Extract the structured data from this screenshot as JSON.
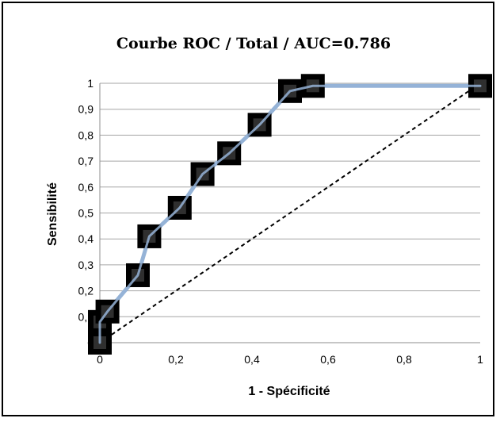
{
  "chart_data": {
    "type": "line",
    "title": "Courbe ROC / Total / AUC=0.786",
    "xlabel": "1 - Spécificité",
    "ylabel": "Sensibilité",
    "xlim": [
      0,
      1
    ],
    "ylim": [
      0,
      1
    ],
    "x_ticks": [
      "0",
      "0,2",
      "0,4",
      "0,6",
      "0,8",
      "1"
    ],
    "x_tick_values": [
      0,
      0.2,
      0.4,
      0.6,
      0.8,
      1
    ],
    "y_ticks": [
      "0",
      "0,1",
      "0,2",
      "0,3",
      "0,4",
      "0,5",
      "0,6",
      "0,7",
      "0,8",
      "0,9",
      "1"
    ],
    "y_tick_values": [
      0,
      0.1,
      0.2,
      0.3,
      0.4,
      0.5,
      0.6,
      0.7,
      0.8,
      0.9,
      1
    ],
    "grid": "horizontal",
    "legend": "none",
    "series": [
      {
        "points": [
          {
            "x": 0,
            "y": 0
          },
          {
            "x": 0,
            "y": 0.08
          },
          {
            "x": 0.02,
            "y": 0.12
          },
          {
            "x": 0.1,
            "y": 0.26
          },
          {
            "x": 0.13,
            "y": 0.41
          },
          {
            "x": 0.21,
            "y": 0.52
          },
          {
            "x": 0.27,
            "y": 0.65
          },
          {
            "x": 0.34,
            "y": 0.73
          },
          {
            "x": 0.42,
            "y": 0.84
          },
          {
            "x": 0.5,
            "y": 0.97
          },
          {
            "x": 0.56,
            "y": 0.99
          },
          {
            "x": 1,
            "y": 0.99
          }
        ]
      },
      {
        "style": "dashed-diagonal",
        "points": [
          {
            "x": 0,
            "y": 0
          },
          {
            "x": 1,
            "y": 1
          }
        ]
      }
    ],
    "colors": {
      "roc_line": "#95b3d7",
      "marker": "#000000",
      "diagonal": "#000000",
      "grid": "#a6a6a6"
    }
  }
}
